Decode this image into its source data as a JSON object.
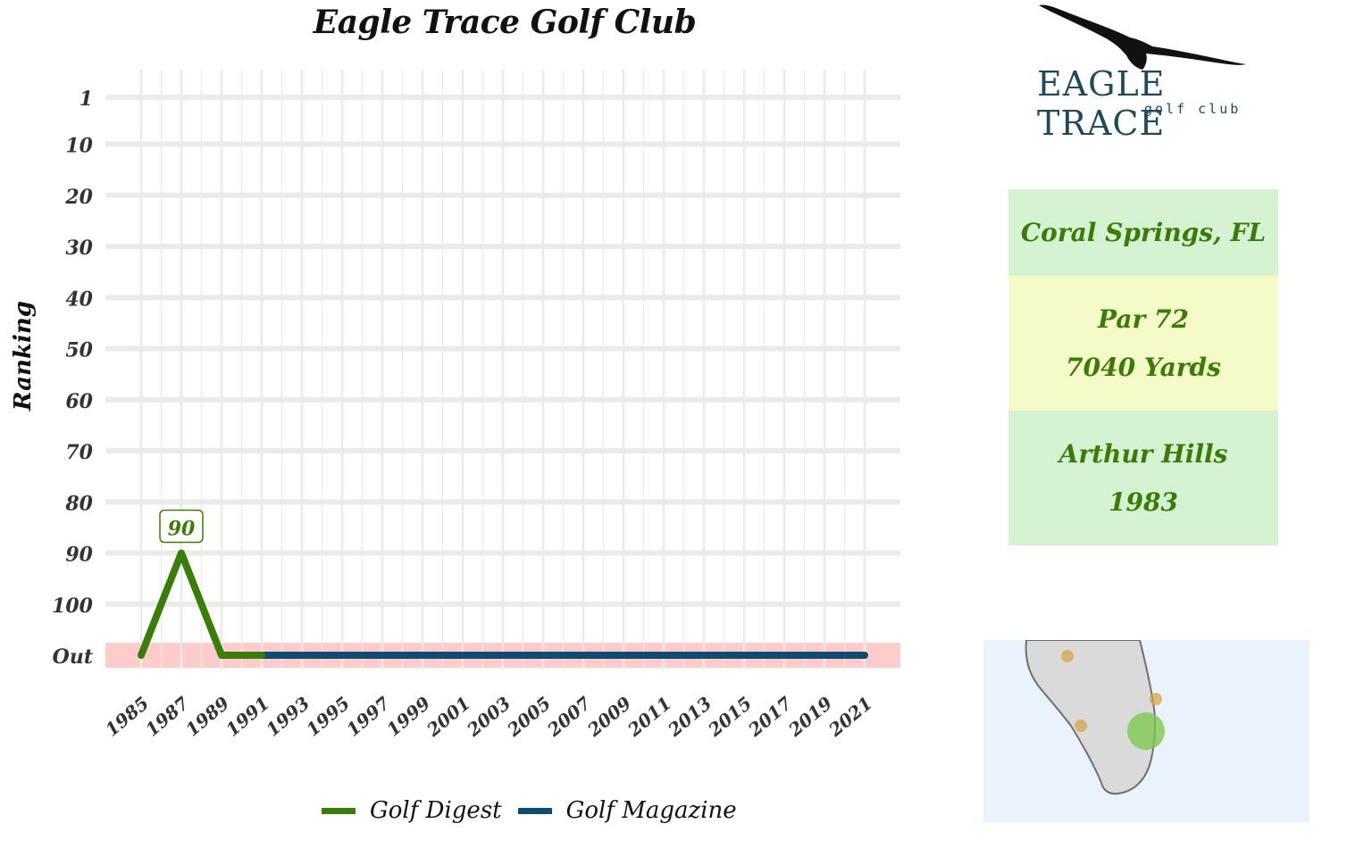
{
  "chart_data": {
    "type": "line",
    "title": "Eagle Trace Golf Club",
    "ylabel": "Ranking",
    "xlabel": "",
    "x_ticks": [
      "1985",
      "1987",
      "1989",
      "1991",
      "1993",
      "1995",
      "1997",
      "1999",
      "2001",
      "2003",
      "2005",
      "2007",
      "2009",
      "2011",
      "2013",
      "2015",
      "2017",
      "2019",
      "2021"
    ],
    "y_ticks": [
      "1",
      "10",
      "20",
      "30",
      "40",
      "50",
      "60",
      "70",
      "80",
      "90",
      "100",
      "Out"
    ],
    "y_tick_values": [
      1,
      10,
      20,
      30,
      40,
      50,
      60,
      70,
      80,
      90,
      100,
      110
    ],
    "ylim": [
      1,
      110
    ],
    "y_reversed": true,
    "out_band_color": "#ffcccc",
    "series": [
      {
        "name": "Golf Digest",
        "color": "#3a7d0a",
        "points": [
          [
            1985,
            "Out"
          ],
          [
            1987,
            90
          ],
          [
            1989,
            "Out"
          ],
          [
            1991,
            "Out"
          ]
        ]
      },
      {
        "name": "Golf Magazine",
        "color": "#0f4c6e",
        "points": [
          [
            1991,
            "Out"
          ],
          [
            2021,
            "Out"
          ]
        ]
      }
    ],
    "annotations": [
      {
        "x": 1987,
        "y": 90,
        "text": "90",
        "color": "#3a7d0a"
      }
    ],
    "legend_position": "bottom",
    "grid": true
  },
  "logo": {
    "name": "EAGLE TRACE",
    "sub": "golf club"
  },
  "info": {
    "location": "Coral Springs, FL",
    "par": "Par 72",
    "yards": "7040 Yards",
    "architect": "Arthur Hills",
    "year": "1983"
  },
  "map": {
    "land_color": "#dadada",
    "water_color": "#eaf3fb",
    "course_color": "#7ec850",
    "other_color": "#d8a34a"
  }
}
